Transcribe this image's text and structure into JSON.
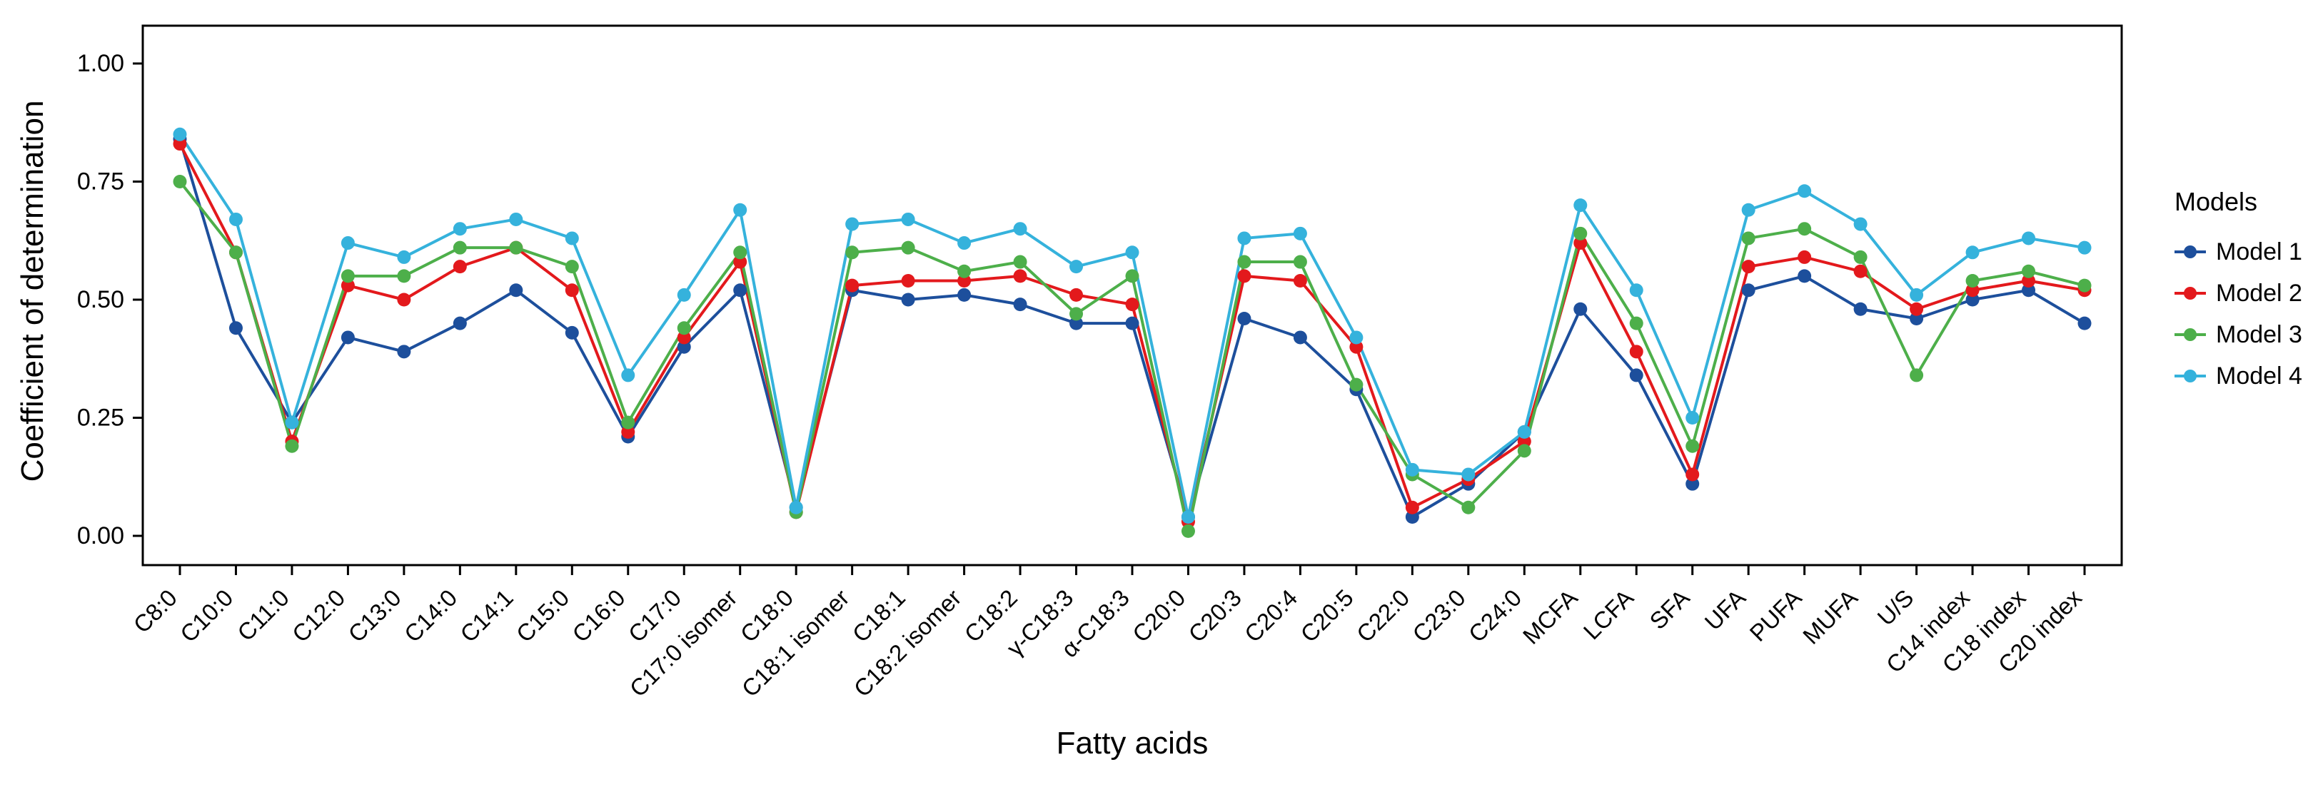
{
  "chart_data": {
    "type": "line",
    "title": "",
    "xlabel": "Fatty acids",
    "ylabel": "Coefficient of determination",
    "legend_title": "Models",
    "legend_position": "right",
    "grid": false,
    "ylim": [
      0.0,
      1.0
    ],
    "yticks": [
      0.0,
      0.25,
      0.5,
      0.75,
      1.0
    ],
    "ytick_labels": [
      "0.00",
      "0.25",
      "0.50",
      "0.75",
      "1.00"
    ],
    "categories": [
      "C8:0",
      "C10:0",
      "C11:0",
      "C12:0",
      "C13:0",
      "C14:0",
      "C14:1",
      "C15:0",
      "C16:0",
      "C17:0",
      "C17:0 isomer",
      "C18:0",
      "C18:1 isomer",
      "C18:1",
      "C18:2 isomer",
      "C18:2",
      "γ-C18:3",
      "α-C18:3",
      "C20:0",
      "C20:3",
      "C20:4",
      "C20:5",
      "C22:0",
      "C23:0",
      "C24:0",
      "MCFA",
      "LCFA",
      "SFA",
      "UFA",
      "PUFA",
      "MUFA",
      "U/S",
      "C14 index",
      "C18 index",
      "C20 index"
    ],
    "series": [
      {
        "name": "Model 1",
        "color": "#1d4f9c",
        "values": [
          0.84,
          0.44,
          0.24,
          0.42,
          0.39,
          0.45,
          0.52,
          0.43,
          0.21,
          0.4,
          0.52,
          0.06,
          0.52,
          0.5,
          0.51,
          0.49,
          0.45,
          0.45,
          0.04,
          0.46,
          0.42,
          0.31,
          0.04,
          0.11,
          0.22,
          0.48,
          0.34,
          0.11,
          0.52,
          0.55,
          0.48,
          0.46,
          0.5,
          0.52,
          0.45
        ]
      },
      {
        "name": "Model 2",
        "color": "#e3191c",
        "values": [
          0.83,
          0.6,
          0.2,
          0.53,
          0.5,
          0.57,
          0.61,
          0.52,
          0.22,
          0.42,
          0.58,
          0.05,
          0.53,
          0.54,
          0.54,
          0.55,
          0.51,
          0.49,
          0.03,
          0.55,
          0.54,
          0.4,
          0.06,
          0.12,
          0.2,
          0.62,
          0.39,
          0.13,
          0.57,
          0.59,
          0.56,
          0.48,
          0.52,
          0.54,
          0.52
        ]
      },
      {
        "name": "Model 3",
        "color": "#4daf4a",
        "values": [
          0.75,
          0.6,
          0.19,
          0.55,
          0.55,
          0.61,
          0.61,
          0.57,
          0.24,
          0.44,
          0.6,
          0.05,
          0.6,
          0.61,
          0.56,
          0.58,
          0.47,
          0.55,
          0.01,
          0.58,
          0.58,
          0.32,
          0.13,
          0.06,
          0.18,
          0.64,
          0.45,
          0.19,
          0.63,
          0.65,
          0.59,
          0.34,
          0.54,
          0.56,
          0.53
        ]
      },
      {
        "name": "Model 4",
        "color": "#35b2dc",
        "values": [
          0.85,
          0.67,
          0.24,
          0.62,
          0.59,
          0.65,
          0.67,
          0.63,
          0.34,
          0.51,
          0.69,
          0.06,
          0.66,
          0.67,
          0.62,
          0.65,
          0.57,
          0.6,
          0.04,
          0.63,
          0.64,
          0.42,
          0.14,
          0.13,
          0.22,
          0.7,
          0.52,
          0.25,
          0.69,
          0.73,
          0.66,
          0.51,
          0.6,
          0.63,
          0.61
        ]
      }
    ]
  }
}
